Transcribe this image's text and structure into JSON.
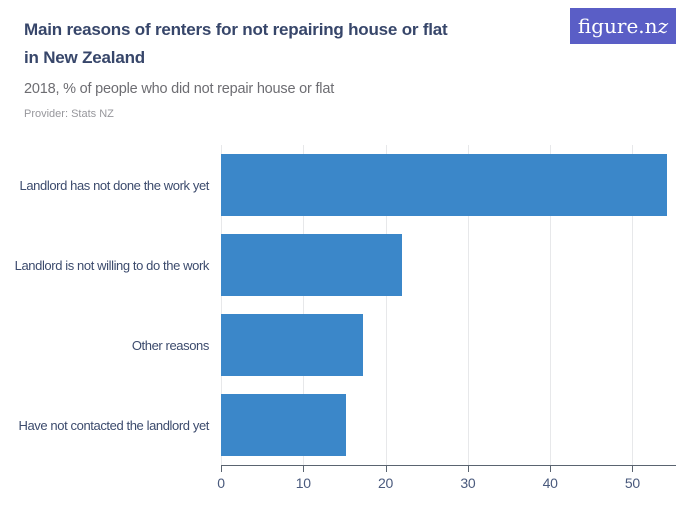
{
  "header": {
    "title": "Main reasons of renters for not repairing house or flat in New Zealand",
    "title_lines": [
      "Main reasons of renters for not repairing house or flat",
      "in New Zealand"
    ],
    "subtitle": "2018, % of people who did not repair house or flat",
    "provider": "Provider: Stats NZ"
  },
  "logo": {
    "text": "figure.nz",
    "text_main": "figure.n",
    "text_z": "z"
  },
  "colors": {
    "bar": "#3b87c9",
    "title": "#37466a",
    "subtitle": "#6d6d72",
    "provider": "#97979c",
    "gridline": "#e7e8ea",
    "axis": "#5a6470",
    "tick_label": "#4a5a7d",
    "category_label": "#3c4b6d",
    "logo_background": "#5a5ec6",
    "background": "#ffffff"
  },
  "chart_data": {
    "type": "bar",
    "orientation": "horizontal",
    "title": "Main reasons of renters for not repairing house or flat in New Zealand",
    "subtitle": "2018, % of people who did not repair house or flat",
    "provider": "Provider: Stats NZ",
    "categories": [
      "Landlord has not done the work yet",
      "Landlord is not willing to do the work",
      "Other reasons",
      "Have not contacted the landlord yet"
    ],
    "values": [
      54.2,
      22,
      17.2,
      15.2
    ],
    "unit": "%",
    "xlabel": "",
    "ylabel": "",
    "xlim": [
      0,
      55.3
    ],
    "xticks": [
      0,
      10,
      20,
      30,
      40,
      50
    ],
    "grid": true,
    "legend_position": "none",
    "bar_color": "#3b87c9"
  }
}
